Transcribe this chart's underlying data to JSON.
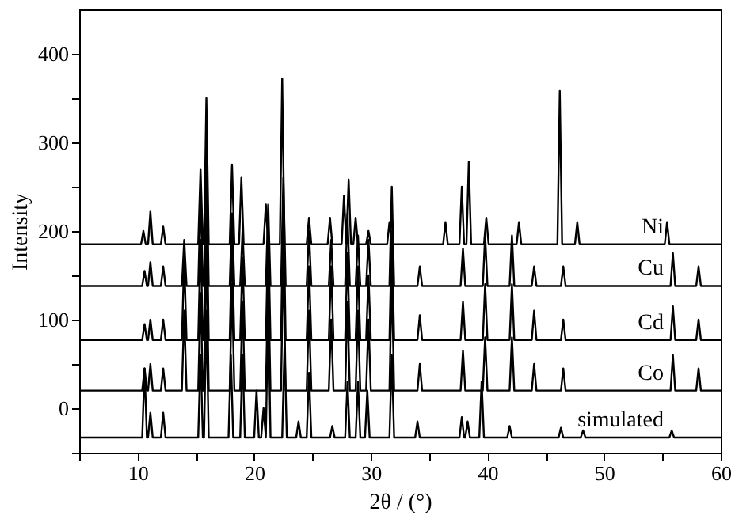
{
  "chart_data": {
    "type": "line",
    "xlabel": "2θ / (°)",
    "ylabel": "Intensity",
    "xlim": [
      5,
      60
    ],
    "xticks": [
      {
        "value": 5,
        "label": null
      },
      10,
      {
        "value": 15,
        "label": null
      },
      20,
      {
        "value": 25,
        "label": null
      },
      30,
      {
        "value": 35,
        "label": null
      },
      40,
      {
        "value": 45,
        "label": null
      },
      50,
      {
        "value": 55,
        "label": null
      },
      60
    ],
    "ylim": [
      -50,
      450
    ],
    "yticks": [
      {
        "value": -50,
        "label": null
      },
      0,
      {
        "value": 50,
        "label": null
      },
      100,
      {
        "value": 150,
        "label": null
      },
      200,
      {
        "value": 250,
        "label": null
      },
      300,
      {
        "value": 350,
        "label": null
      },
      400
    ],
    "grid": false,
    "legend": false,
    "marker": "none",
    "line_style": "solid",
    "series": [
      {
        "name": "Ni",
        "color": "#000000",
        "x": [
          5,
          10.3,
          10.5,
          10.7,
          10.9,
          11.1,
          11.3,
          12.0,
          12.2,
          12.4,
          15.2,
          15.4,
          15.6,
          15.7,
          15.9,
          16.1,
          17.9,
          18.1,
          18.3,
          18.7,
          18.9,
          19.1,
          20.8,
          21.0,
          21.2,
          22.2,
          22.4,
          22.6,
          24.5,
          24.7,
          24.9,
          26.3,
          26.5,
          26.7,
          27.5,
          27.7,
          27.9,
          28.1,
          28.3,
          28.5,
          28.7,
          28.9,
          29.6,
          29.8,
          30.0,
          31.4,
          31.6,
          31.8,
          36.2,
          36.4,
          36.6,
          37.6,
          37.8,
          38.0,
          38.2,
          38.4,
          38.6,
          39.7,
          39.9,
          40.1,
          42.5,
          42.7,
          42.9,
          46.0,
          46.2,
          46.4,
          47.5,
          47.7,
          47.9,
          55.2,
          55.4,
          55.6,
          60
        ],
        "values": [
          185,
          185,
          200,
          185,
          185,
          222,
          185,
          185,
          205,
          185,
          185,
          270,
          185,
          185,
          350,
          185,
          185,
          275,
          185,
          185,
          260,
          185,
          185,
          230,
          185,
          185,
          372,
          185,
          185,
          215,
          185,
          185,
          215,
          185,
          185,
          240,
          185,
          258,
          185,
          185,
          215,
          185,
          185,
          200,
          185,
          185,
          210,
          185,
          185,
          210,
          185,
          185,
          250,
          185,
          185,
          278,
          185,
          185,
          215,
          185,
          185,
          210,
          185,
          185,
          358,
          185,
          185,
          210,
          185,
          185,
          210,
          185,
          185
        ]
      },
      {
        "name": "Cu",
        "color": "#000000",
        "x": [
          5,
          10.4,
          10.6,
          10.8,
          10.9,
          11.1,
          11.3,
          12.0,
          12.2,
          12.4,
          13.8,
          14.0,
          14.2,
          15.2,
          15.4,
          15.6,
          15.7,
          15.9,
          16.1,
          17.9,
          18.1,
          18.3,
          18.8,
          19.0,
          19.2,
          21.0,
          21.2,
          21.4,
          22.3,
          22.5,
          22.7,
          24.5,
          24.7,
          24.9,
          26.4,
          26.6,
          26.8,
          27.8,
          28.0,
          28.2,
          28.7,
          28.9,
          29.1,
          29.6,
          29.8,
          30.0,
          31.6,
          31.8,
          32.0,
          34.0,
          34.2,
          34.4,
          37.7,
          37.9,
          38.1,
          39.6,
          39.8,
          40.0,
          41.9,
          42.1,
          42.3,
          43.8,
          44.0,
          44.2,
          46.3,
          46.5,
          46.7,
          55.7,
          55.9,
          56.1,
          57.9,
          58.1,
          58.3,
          60
        ],
        "values": [
          138,
          138,
          155,
          138,
          138,
          165,
          138,
          138,
          160,
          138,
          138,
          190,
          138,
          138,
          240,
          138,
          138,
          300,
          138,
          138,
          220,
          138,
          138,
          200,
          138,
          138,
          230,
          138,
          138,
          260,
          138,
          138,
          200,
          138,
          138,
          190,
          138,
          138,
          220,
          138,
          138,
          195,
          138,
          138,
          190,
          138,
          138,
          250,
          138,
          138,
          160,
          138,
          138,
          180,
          138,
          138,
          195,
          138,
          138,
          195,
          138,
          138,
          160,
          138,
          138,
          160,
          138,
          138,
          175,
          138,
          138,
          160,
          138,
          138
        ]
      },
      {
        "name": "Cd",
        "color": "#000000",
        "x": [
          5,
          10.4,
          10.6,
          10.8,
          10.9,
          11.1,
          11.3,
          12.0,
          12.2,
          12.4,
          13.8,
          14.0,
          14.2,
          15.2,
          15.4,
          15.6,
          15.7,
          15.9,
          16.1,
          17.9,
          18.1,
          18.3,
          18.8,
          19.0,
          19.2,
          21.0,
          21.2,
          21.4,
          22.3,
          22.5,
          22.7,
          24.5,
          24.7,
          24.9,
          26.4,
          26.6,
          26.8,
          27.8,
          28.0,
          28.2,
          28.7,
          28.9,
          29.1,
          29.6,
          29.8,
          30.0,
          31.6,
          31.8,
          32.0,
          34.0,
          34.2,
          34.4,
          37.7,
          37.9,
          38.1,
          39.6,
          39.8,
          40.0,
          41.9,
          42.1,
          42.3,
          43.8,
          44.0,
          44.2,
          46.3,
          46.5,
          46.7,
          55.7,
          55.9,
          56.1,
          57.9,
          58.1,
          58.3,
          60
        ],
        "values": [
          77,
          77,
          95,
          77,
          77,
          100,
          77,
          77,
          100,
          77,
          77,
          170,
          77,
          77,
          190,
          77,
          77,
          260,
          77,
          77,
          190,
          77,
          77,
          170,
          77,
          77,
          200,
          77,
          77,
          240,
          77,
          77,
          160,
          77,
          77,
          160,
          77,
          77,
          175,
          77,
          77,
          160,
          77,
          77,
          150,
          77,
          77,
          200,
          77,
          77,
          105,
          77,
          77,
          120,
          77,
          77,
          140,
          77,
          77,
          140,
          77,
          77,
          110,
          77,
          77,
          100,
          77,
          77,
          115,
          77,
          77,
          100,
          77,
          77
        ]
      },
      {
        "name": "Co",
        "color": "#000000",
        "x": [
          5,
          10.4,
          10.6,
          10.8,
          10.9,
          11.1,
          11.3,
          12.0,
          12.2,
          12.4,
          13.8,
          14.0,
          14.2,
          15.2,
          15.4,
          15.6,
          15.7,
          15.9,
          16.1,
          17.9,
          18.1,
          18.3,
          18.8,
          19.0,
          19.2,
          21.0,
          21.2,
          21.4,
          22.3,
          22.5,
          22.7,
          24.5,
          24.7,
          24.9,
          26.4,
          26.6,
          26.8,
          27.8,
          28.0,
          28.2,
          28.7,
          28.9,
          29.1,
          29.6,
          29.8,
          30.0,
          31.6,
          31.8,
          32.0,
          34.0,
          34.2,
          34.4,
          37.7,
          37.9,
          38.1,
          39.6,
          39.8,
          40.0,
          41.9,
          42.1,
          42.3,
          43.8,
          44.0,
          44.2,
          46.3,
          46.5,
          46.7,
          55.7,
          55.9,
          56.1,
          57.9,
          58.1,
          58.3,
          60
        ],
        "values": [
          20,
          20,
          45,
          20,
          20,
          50,
          20,
          20,
          45,
          20,
          20,
          110,
          20,
          20,
          130,
          20,
          20,
          190,
          20,
          20,
          140,
          20,
          20,
          120,
          20,
          20,
          150,
          20,
          20,
          180,
          20,
          20,
          110,
          20,
          20,
          100,
          20,
          20,
          120,
          20,
          20,
          110,
          20,
          20,
          100,
          20,
          20,
          150,
          20,
          20,
          50,
          20,
          20,
          65,
          20,
          20,
          80,
          20,
          20,
          80,
          20,
          20,
          50,
          20,
          20,
          45,
          20,
          20,
          60,
          20,
          20,
          45,
          20,
          20
        ]
      },
      {
        "name": "simulated",
        "color": "#000000",
        "x": [
          5,
          10.4,
          10.6,
          10.8,
          10.9,
          11.1,
          11.3,
          12.0,
          12.2,
          12.4,
          15.2,
          15.4,
          15.6,
          15.7,
          15.9,
          16.1,
          17.8,
          18.0,
          18.2,
          18.8,
          19.0,
          19.2,
          20.0,
          20.2,
          20.4,
          20.6,
          20.8,
          21.0,
          21.2,
          21.4,
          22.4,
          22.6,
          22.8,
          23.6,
          23.8,
          24.0,
          24.5,
          24.7,
          24.9,
          26.5,
          26.7,
          26.9,
          27.8,
          28.0,
          28.2,
          28.7,
          28.9,
          29.1,
          29.5,
          29.7,
          29.9,
          31.6,
          31.8,
          32.0,
          33.8,
          34.0,
          34.2,
          37.6,
          37.8,
          38.0,
          38.1,
          38.3,
          38.5,
          39.3,
          39.5,
          39.7,
          41.7,
          41.9,
          42.1,
          46.1,
          46.3,
          46.5,
          48.0,
          48.2,
          48.4,
          55.6,
          55.8,
          56.0,
          60
        ],
        "values": [
          -33,
          -33,
          45,
          -33,
          -33,
          -5,
          -33,
          -33,
          -5,
          -33,
          -33,
          60,
          -33,
          -33,
          110,
          -33,
          -33,
          60,
          -33,
          -33,
          60,
          -33,
          -33,
          20,
          -33,
          -33,
          0,
          -33,
          120,
          -33,
          -33,
          70,
          -33,
          -33,
          -15,
          -33,
          -33,
          40,
          -33,
          -33,
          -20,
          -33,
          -33,
          30,
          -33,
          -33,
          30,
          -33,
          -33,
          20,
          -33,
          -33,
          60,
          -33,
          -33,
          -15,
          -33,
          -33,
          -10,
          -33,
          -33,
          -15,
          -33,
          -33,
          30,
          -33,
          -33,
          -20,
          -33,
          -33,
          -22,
          -33,
          -33,
          -25,
          -33,
          -33,
          -25,
          -33,
          -33
        ]
      }
    ]
  }
}
